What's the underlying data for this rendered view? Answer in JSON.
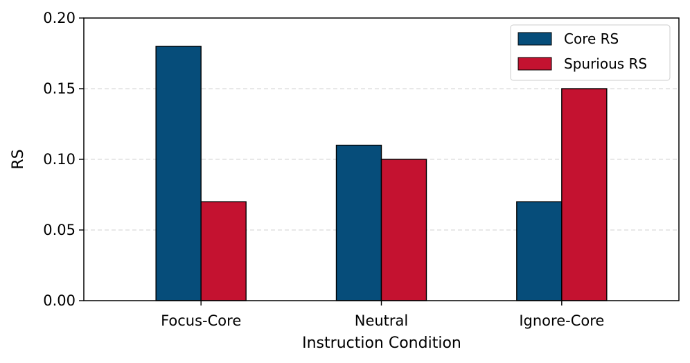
{
  "chart_data": {
    "type": "bar",
    "title": "",
    "xlabel": "Instruction Condition",
    "ylabel": "RS",
    "categories": [
      "Focus-Core",
      "Neutral",
      "Ignore-Core"
    ],
    "series": [
      {
        "name": "Core RS",
        "values": [
          0.18,
          0.11,
          0.07
        ],
        "color": "#064d7a"
      },
      {
        "name": "Spurious RS",
        "values": [
          0.07,
          0.1,
          0.15
        ],
        "color": "#c41230"
      }
    ],
    "ylim": [
      0,
      0.2
    ],
    "yticks": [
      "0.00",
      "0.05",
      "0.10",
      "0.15",
      "0.20"
    ],
    "grid": "horizontal dashed",
    "legend_position": "top-right"
  }
}
